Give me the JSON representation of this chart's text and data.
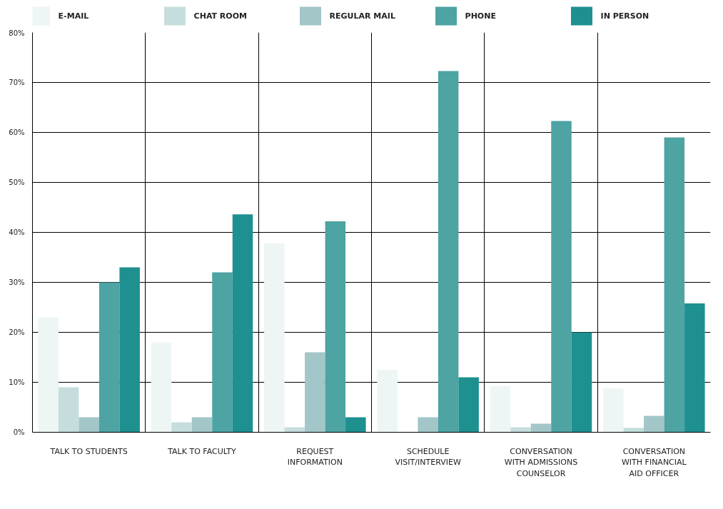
{
  "chart_data": {
    "type": "bar",
    "categories": [
      "TALK TO STUDENTS",
      "TALK TO FACULTY",
      "REQUEST INFORMATION",
      "SCHEDULE VISIT/INTERVIEW",
      "CONVERSATION WITH ADMISSIONS COUNSELOR",
      "CONVERSATION WITH FINANCIAL AID OFFICER"
    ],
    "series": [
      {
        "name": "E-MAIL",
        "color": "#eef5f5",
        "values": [
          23,
          18,
          37.8,
          12.5,
          9.2,
          8.8
        ]
      },
      {
        "name": "CHAT ROOM",
        "color": "#c5dedd",
        "values": [
          9,
          2,
          1,
          0,
          1,
          0.9
        ]
      },
      {
        "name": "REGULAR MAIL",
        "color": "#a3c6c8",
        "values": [
          3,
          3,
          16,
          3,
          1.7,
          3.3
        ]
      },
      {
        "name": "PHONE",
        "color": "#4ea3a3",
        "values": [
          30,
          32,
          42.2,
          72.3,
          62.3,
          59
        ]
      },
      {
        "name": "IN PERSON",
        "color": "#1f9090",
        "values": [
          33,
          43.6,
          3,
          11,
          20,
          25.8
        ]
      }
    ],
    "ylim": [
      0,
      80
    ],
    "yticks": [
      {
        "value": 0,
        "label": "0%"
      },
      {
        "value": 10,
        "label": "10%"
      },
      {
        "value": 20,
        "label": "20%"
      },
      {
        "value": 30,
        "label": "30%"
      },
      {
        "value": 40,
        "label": "40%"
      },
      {
        "value": 50,
        "label": "50%"
      },
      {
        "value": 60,
        "label": "60%"
      },
      {
        "value": 70,
        "label": "70%"
      },
      {
        "value": 80,
        "label": "80%"
      }
    ],
    "grid": true,
    "legend": "top"
  }
}
